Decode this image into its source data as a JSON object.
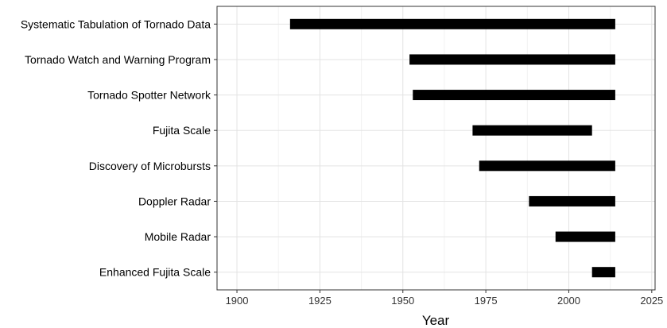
{
  "chart_data": {
    "type": "bar",
    "orientation": "horizontal-range",
    "categories": [
      "Systematic Tabulation of Tornado Data",
      "Tornado Watch and Warning Program",
      "Tornado Spotter Network",
      "Fujita Scale",
      "Discovery of Microbursts",
      "Doppler Radar",
      "Mobile Radar",
      "Enhanced Fujita Scale"
    ],
    "series": [
      {
        "start": [
          1916,
          1952,
          1953,
          1971,
          1973,
          1988,
          1996,
          2007
        ],
        "end": [
          2014,
          2014,
          2014,
          2007,
          2014,
          2014,
          2014,
          2014
        ]
      }
    ],
    "xlabel": "Year",
    "ylabel": "",
    "xlim": [
      1894,
      2026
    ],
    "xticks": [
      "1900",
      "1925",
      "1950",
      "1975",
      "2000",
      "2025"
    ],
    "xtick_values": [
      1900,
      1925,
      1950,
      1975,
      2000,
      2025
    ],
    "grid": true,
    "colors": {
      "bar": "#000000",
      "grid_major": "#e3e3e3",
      "grid_minor": "#f2f2f2",
      "panel_border": "#333333",
      "background": "#ffffff"
    }
  }
}
